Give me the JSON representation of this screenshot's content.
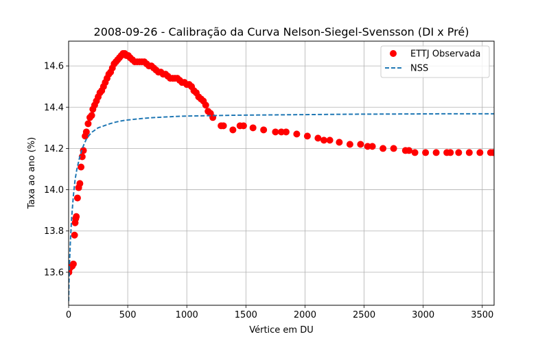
{
  "chart_data": {
    "type": "scatter",
    "title": "2008-09-26 - Calibração da Curva Nelson-Siegel-Svensson (DI x Pré)",
    "xlabel": "Vértice em DU",
    "ylabel": "Taxa ao ano (%)",
    "xlim": [
      0,
      3600
    ],
    "ylim": [
      13.44,
      14.72
    ],
    "xticks": [
      0,
      500,
      1000,
      1500,
      2000,
      2500,
      3000,
      3500
    ],
    "yticks": [
      13.6,
      13.8,
      14.0,
      14.2,
      14.4,
      14.6
    ],
    "xtick_labels": [
      "0",
      "500",
      "1000",
      "1500",
      "2000",
      "2500",
      "3000",
      "3500"
    ],
    "ytick_labels": [
      "13.6",
      "13.8",
      "14.0",
      "14.2",
      "14.4",
      "14.6"
    ],
    "grid": true,
    "legend_position": "top-right",
    "series": [
      {
        "name": "ETTJ Observada",
        "kind": "scatter",
        "color": "#ff0000",
        "points": [
          [
            2,
            13.6
          ],
          [
            10,
            13.62
          ],
          [
            20,
            13.63
          ],
          [
            30,
            13.63
          ],
          [
            40,
            13.64
          ],
          [
            50,
            13.78
          ],
          [
            55,
            13.84
          ],
          [
            60,
            13.86
          ],
          [
            65,
            13.87
          ],
          [
            75,
            13.96
          ],
          [
            85,
            14.01
          ],
          [
            95,
            14.03
          ],
          [
            105,
            14.11
          ],
          [
            115,
            14.16
          ],
          [
            125,
            14.19
          ],
          [
            140,
            14.26
          ],
          [
            150,
            14.28
          ],
          [
            165,
            14.32
          ],
          [
            180,
            14.35
          ],
          [
            195,
            14.36
          ],
          [
            205,
            14.39
          ],
          [
            220,
            14.41
          ],
          [
            235,
            14.43
          ],
          [
            250,
            14.45
          ],
          [
            265,
            14.47
          ],
          [
            280,
            14.48
          ],
          [
            295,
            14.5
          ],
          [
            310,
            14.52
          ],
          [
            325,
            14.54
          ],
          [
            340,
            14.56
          ],
          [
            355,
            14.57
          ],
          [
            370,
            14.59
          ],
          [
            385,
            14.61
          ],
          [
            400,
            14.62
          ],
          [
            415,
            14.63
          ],
          [
            430,
            14.64
          ],
          [
            445,
            14.65
          ],
          [
            460,
            14.66
          ],
          [
            475,
            14.66
          ],
          [
            490,
            14.65
          ],
          [
            505,
            14.65
          ],
          [
            520,
            14.64
          ],
          [
            540,
            14.63
          ],
          [
            560,
            14.62
          ],
          [
            580,
            14.62
          ],
          [
            600,
            14.62
          ],
          [
            620,
            14.62
          ],
          [
            640,
            14.62
          ],
          [
            660,
            14.61
          ],
          [
            680,
            14.6
          ],
          [
            700,
            14.6
          ],
          [
            720,
            14.59
          ],
          [
            740,
            14.58
          ],
          [
            760,
            14.57
          ],
          [
            780,
            14.57
          ],
          [
            800,
            14.56
          ],
          [
            820,
            14.56
          ],
          [
            840,
            14.55
          ],
          [
            860,
            14.54
          ],
          [
            880,
            14.54
          ],
          [
            900,
            14.54
          ],
          [
            920,
            14.54
          ],
          [
            940,
            14.53
          ],
          [
            960,
            14.52
          ],
          [
            980,
            14.52
          ],
          [
            1000,
            14.51
          ],
          [
            1020,
            14.51
          ],
          [
            1040,
            14.5
          ],
          [
            1060,
            14.48
          ],
          [
            1080,
            14.47
          ],
          [
            1100,
            14.45
          ],
          [
            1120,
            14.44
          ],
          [
            1140,
            14.43
          ],
          [
            1160,
            14.41
          ],
          [
            1180,
            14.38
          ],
          [
            1200,
            14.37
          ],
          [
            1220,
            14.35
          ],
          [
            1290,
            14.31
          ],
          [
            1310,
            14.31
          ],
          [
            1390,
            14.29
          ],
          [
            1450,
            14.31
          ],
          [
            1480,
            14.31
          ],
          [
            1560,
            14.3
          ],
          [
            1650,
            14.29
          ],
          [
            1750,
            14.28
          ],
          [
            1800,
            14.28
          ],
          [
            1840,
            14.28
          ],
          [
            1930,
            14.27
          ],
          [
            2020,
            14.26
          ],
          [
            2110,
            14.25
          ],
          [
            2160,
            14.24
          ],
          [
            2210,
            14.24
          ],
          [
            2290,
            14.23
          ],
          [
            2380,
            14.22
          ],
          [
            2470,
            14.22
          ],
          [
            2530,
            14.21
          ],
          [
            2570,
            14.21
          ],
          [
            2660,
            14.2
          ],
          [
            2750,
            14.2
          ],
          [
            2850,
            14.19
          ],
          [
            2880,
            14.19
          ],
          [
            2930,
            14.18
          ],
          [
            3020,
            14.18
          ],
          [
            3110,
            14.18
          ],
          [
            3200,
            14.18
          ],
          [
            3230,
            14.18
          ],
          [
            3300,
            14.18
          ],
          [
            3390,
            14.18
          ],
          [
            3480,
            14.18
          ],
          [
            3570,
            14.18
          ],
          [
            3590,
            14.18
          ]
        ]
      },
      {
        "name": "NSS",
        "kind": "line",
        "color": "#1f77b4",
        "line_style": "dashed",
        "points": [
          [
            0,
            13.46
          ],
          [
            3,
            13.55
          ],
          [
            8,
            13.65
          ],
          [
            15,
            13.75
          ],
          [
            25,
            13.86
          ],
          [
            40,
            13.97
          ],
          [
            55,
            14.05
          ],
          [
            70,
            14.1
          ],
          [
            90,
            14.15
          ],
          [
            110,
            14.19
          ],
          [
            130,
            14.22
          ],
          [
            150,
            14.245
          ],
          [
            175,
            14.265
          ],
          [
            200,
            14.28
          ],
          [
            250,
            14.3
          ],
          [
            300,
            14.31
          ],
          [
            350,
            14.32
          ],
          [
            400,
            14.328
          ],
          [
            450,
            14.334
          ],
          [
            500,
            14.338
          ],
          [
            600,
            14.344
          ],
          [
            700,
            14.349
          ],
          [
            800,
            14.352
          ],
          [
            900,
            14.355
          ],
          [
            1000,
            14.357
          ],
          [
            1200,
            14.359
          ],
          [
            1400,
            14.361
          ],
          [
            1600,
            14.362
          ],
          [
            1800,
            14.363
          ],
          [
            2000,
            14.364
          ],
          [
            2400,
            14.366
          ],
          [
            2800,
            14.367
          ],
          [
            3200,
            14.368
          ],
          [
            3600,
            14.368
          ]
        ]
      }
    ]
  }
}
